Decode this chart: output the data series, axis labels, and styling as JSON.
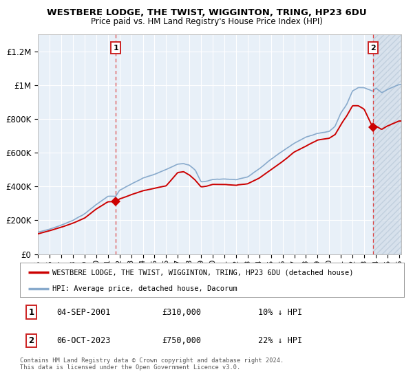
{
  "title": "WESTBERE LODGE, THE TWIST, WIGGINTON, TRING, HP23 6DU",
  "subtitle": "Price paid vs. HM Land Registry's House Price Index (HPI)",
  "ylabel_ticks": [
    "£0",
    "£200K",
    "£400K",
    "£600K",
    "£800K",
    "£1M",
    "£1.2M"
  ],
  "ytick_values": [
    0,
    200000,
    400000,
    600000,
    800000,
    1000000,
    1200000
  ],
  "ylim": [
    0,
    1300000
  ],
  "xlim_start": 1995.0,
  "xlim_end": 2026.2,
  "sale1_date": 2001.67,
  "sale1_price": 310000,
  "sale2_date": 2023.75,
  "sale2_price": 750000,
  "red_line_color": "#cc0000",
  "blue_line_color": "#88aacc",
  "bg_color": "#e8f0f8",
  "grid_color": "#ffffff",
  "dashed_line_color": "#dd4444",
  "legend_label1": "WESTBERE LODGE, THE TWIST, WIGGINTON, TRING, HP23 6DU (detached house)",
  "legend_label2": "HPI: Average price, detached house, Dacorum",
  "annotation1_date": "04-SEP-2001",
  "annotation1_price": "£310,000",
  "annotation1_hpi": "10% ↓ HPI",
  "annotation2_date": "06-OCT-2023",
  "annotation2_price": "£750,000",
  "annotation2_hpi": "22% ↓ HPI",
  "footer": "Contains HM Land Registry data © Crown copyright and database right 2024.\nThis data is licensed under the Open Government Licence v3.0."
}
